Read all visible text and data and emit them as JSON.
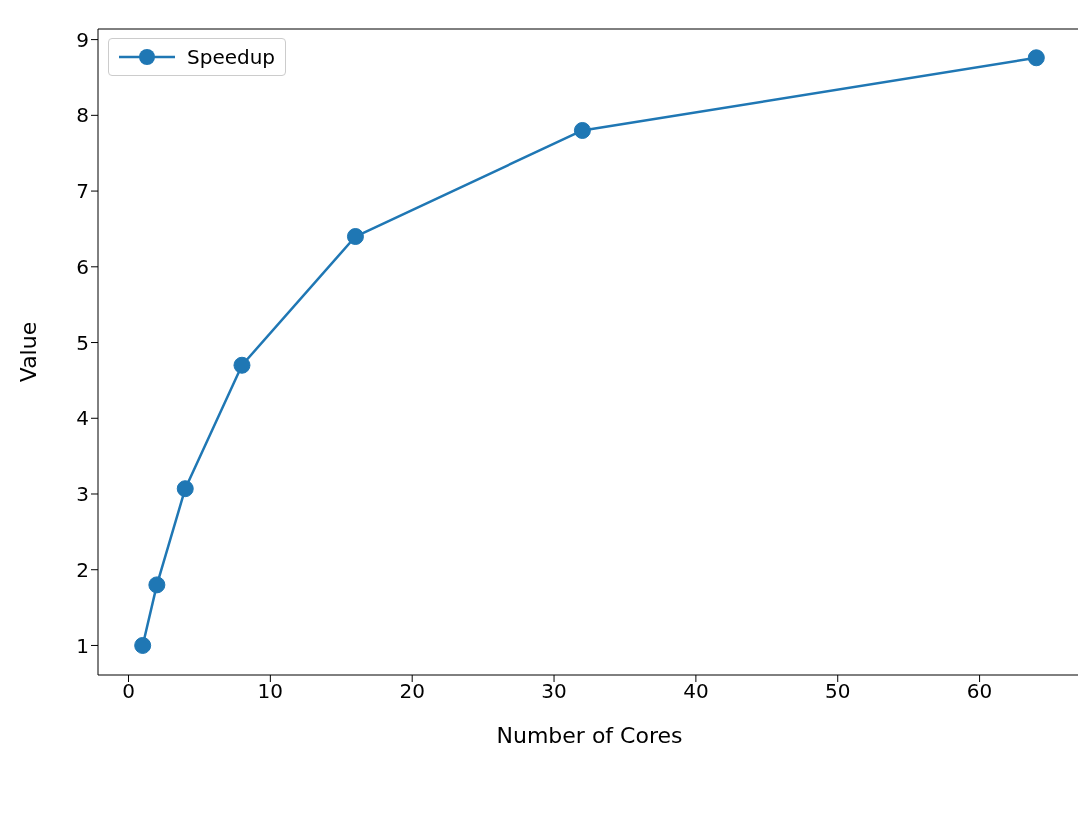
{
  "chart_data": {
    "type": "line",
    "xlabel": "Number of Cores",
    "ylabel": "Value",
    "x": [
      1,
      2,
      4,
      8,
      16,
      32,
      64
    ],
    "series": [
      {
        "name": "Speedup",
        "color": "#1f77b4",
        "values": [
          1.0,
          1.8,
          3.07,
          4.7,
          6.4,
          7.8,
          8.76
        ]
      }
    ],
    "xlim": [
      -2.15,
      67.15
    ],
    "xticks": [
      0,
      10,
      20,
      30,
      40,
      50,
      60
    ],
    "ylim": [
      0.61,
      9.14
    ],
    "yticks": [
      1,
      2,
      3,
      4,
      5,
      6,
      7,
      8,
      9
    ],
    "marker": "circle",
    "line_style": "solid",
    "legend": "top left",
    "grid": false
  }
}
